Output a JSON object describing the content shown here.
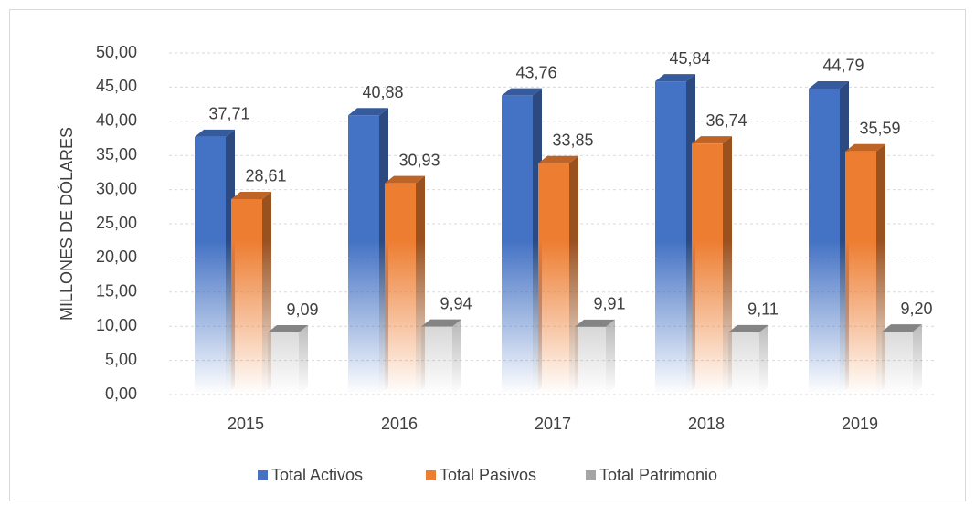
{
  "chart_data": {
    "type": "bar3d",
    "y_axis_label": "MILLONES DE DÓLARES",
    "categories": [
      "2015",
      "2016",
      "2017",
      "2018",
      "2019"
    ],
    "series": [
      {
        "name": "Total Activos",
        "color": "#4472c4",
        "values": [
          37.71,
          40.88,
          43.76,
          45.84,
          44.79
        ],
        "value_labels": [
          "37,71",
          "40,88",
          "43,76",
          "45,84",
          "44,79"
        ]
      },
      {
        "name": "Total Pasivos",
        "color": "#ed7d31",
        "values": [
          28.61,
          30.93,
          33.85,
          36.74,
          35.59
        ],
        "value_labels": [
          "28,61",
          "30,93",
          "33,85",
          "36,74",
          "35,59"
        ]
      },
      {
        "name": "Total Patrimonio",
        "color": "#a5a5a5",
        "values": [
          9.09,
          9.94,
          9.91,
          9.11,
          9.2
        ],
        "value_labels": [
          "9,09",
          "9,94",
          "9,91",
          "9,11",
          "9,20"
        ]
      }
    ],
    "ylim": [
      0,
      50
    ],
    "yticks": [
      {
        "value": 0,
        "label": "0,00"
      },
      {
        "value": 5,
        "label": "5,00"
      },
      {
        "value": 10,
        "label": "10,00"
      },
      {
        "value": 15,
        "label": "15,00"
      },
      {
        "value": 20,
        "label": "20,00"
      },
      {
        "value": 25,
        "label": "25,00"
      },
      {
        "value": 30,
        "label": "30,00"
      },
      {
        "value": 35,
        "label": "35,00"
      },
      {
        "value": 40,
        "label": "40,00"
      },
      {
        "value": 45,
        "label": "45,00"
      },
      {
        "value": 50,
        "label": "50,00"
      }
    ],
    "grid": true,
    "legend": "bottom"
  }
}
